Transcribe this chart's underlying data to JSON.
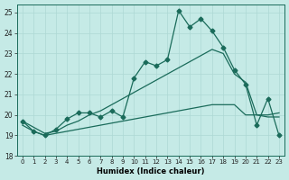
{
  "bg_color": "#c5eae6",
  "grid_color": "#aed8d4",
  "line_color": "#1a6b5a",
  "xlabel": "Humidex (Indice chaleur)",
  "xlim_min": -0.5,
  "xlim_max": 23.5,
  "ylim_min": 18,
  "ylim_max": 25.4,
  "yticks": [
    18,
    19,
    20,
    21,
    22,
    23,
    24,
    25
  ],
  "xticks": [
    0,
    1,
    2,
    3,
    4,
    5,
    6,
    7,
    8,
    9,
    10,
    11,
    12,
    13,
    14,
    15,
    16,
    17,
    18,
    19,
    20,
    21,
    22,
    23
  ],
  "line1_x": [
    0,
    1,
    2,
    3,
    4,
    5,
    6,
    7,
    8,
    9,
    10,
    11,
    12,
    13,
    14,
    15,
    16,
    17,
    18,
    19,
    20,
    21,
    22,
    23
  ],
  "line1_y": [
    19.5,
    19.2,
    19.0,
    19.1,
    19.2,
    19.3,
    19.4,
    19.5,
    19.6,
    19.7,
    19.8,
    19.9,
    20.0,
    20.1,
    20.2,
    20.3,
    20.4,
    20.5,
    20.5,
    20.5,
    20.0,
    20.0,
    19.9,
    19.9
  ],
  "line2_x": [
    0,
    1,
    2,
    3,
    4,
    5,
    6,
    7,
    8,
    9,
    10,
    11,
    12,
    13,
    14,
    15,
    16,
    17,
    18,
    19,
    20,
    21,
    22,
    23
  ],
  "line2_y": [
    19.7,
    19.4,
    19.1,
    19.2,
    19.5,
    19.7,
    20.0,
    20.2,
    20.5,
    20.8,
    21.1,
    21.4,
    21.7,
    22.0,
    22.3,
    22.6,
    22.9,
    23.2,
    23.0,
    22.0,
    21.6,
    20.0,
    20.0,
    20.1
  ],
  "line3_x": [
    0,
    1,
    2,
    3,
    4,
    5,
    6,
    7,
    8,
    9,
    10,
    11,
    12,
    13,
    14,
    15,
    16,
    17,
    18,
    19,
    20,
    21,
    22,
    23
  ],
  "line3_y": [
    19.7,
    19.2,
    19.0,
    19.3,
    19.8,
    20.1,
    20.1,
    19.9,
    20.2,
    19.9,
    21.8,
    22.6,
    22.4,
    22.7,
    25.1,
    24.3,
    24.7,
    24.1,
    23.3,
    22.2,
    21.5,
    19.5,
    20.8,
    19.0
  ],
  "line3_marker_x": [
    0,
    1,
    2,
    3,
    4,
    5,
    6,
    7,
    8,
    9,
    10,
    11,
    12,
    13,
    14,
    15,
    16,
    17,
    18,
    19,
    20,
    21,
    22,
    23
  ],
  "line3_marker_y": [
    19.7,
    19.2,
    19.0,
    19.3,
    19.8,
    20.1,
    20.1,
    19.9,
    20.2,
    19.9,
    21.8,
    22.6,
    22.4,
    22.7,
    25.1,
    24.3,
    24.7,
    24.1,
    23.3,
    22.2,
    21.5,
    19.5,
    20.8,
    19.0
  ],
  "marker_style": "D",
  "marker_size": 2.5,
  "lw": 0.9
}
